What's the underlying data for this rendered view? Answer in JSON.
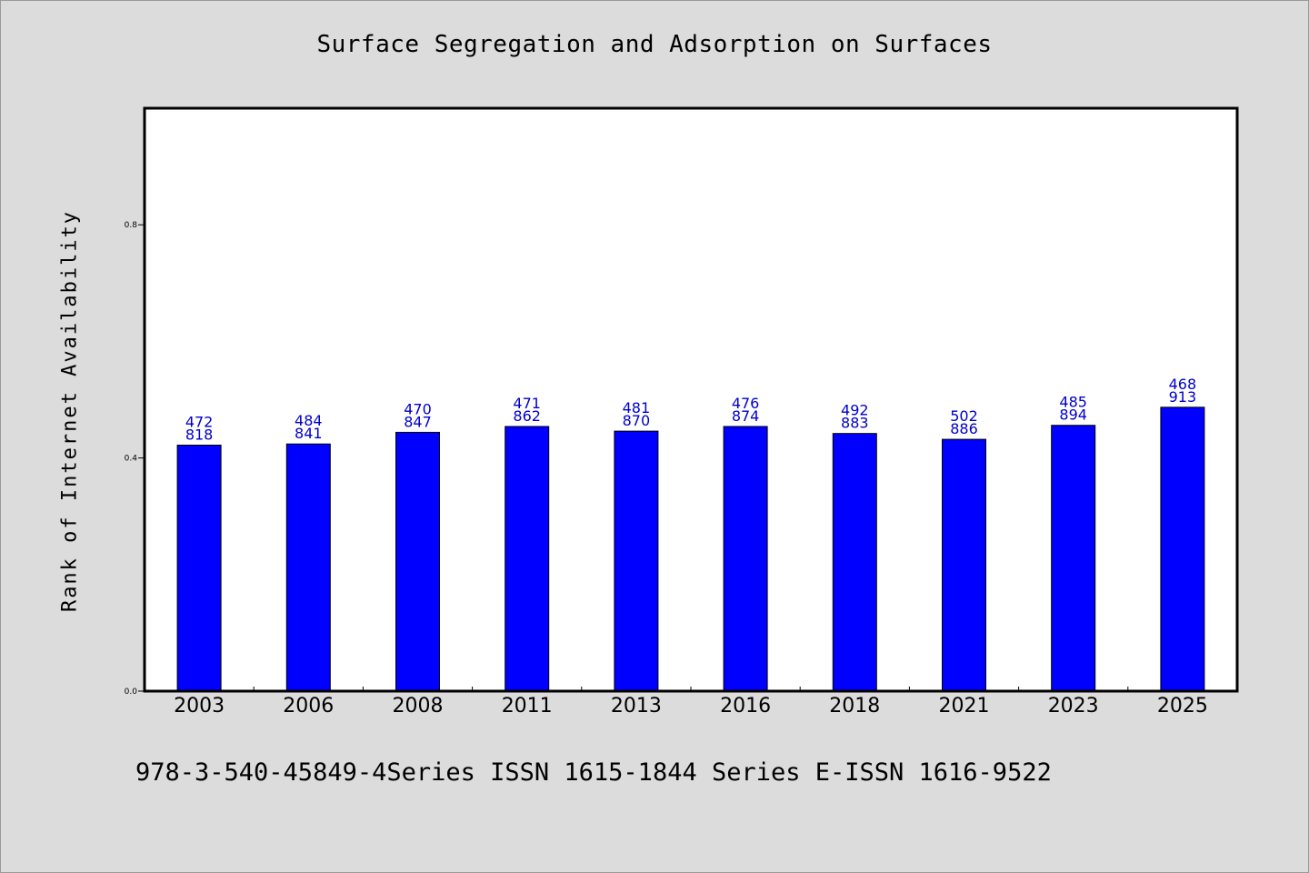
{
  "chart_data": {
    "type": "bar",
    "title": "Surface Segregation and Adsorption on Surfaces",
    "ylabel": "Rank of Internet Availability",
    "xlabel": "",
    "ylim": [
      0,
      1.0
    ],
    "yticks": [
      "0.0",
      "0.4",
      "0.8"
    ],
    "ytick_values": [
      0.0,
      0.4,
      0.8
    ],
    "categories": [
      "2003",
      "2006",
      "2008",
      "2011",
      "2013",
      "2016",
      "2018",
      "2021",
      "2023",
      "2025"
    ],
    "values": [
      0.422,
      0.424,
      0.444,
      0.454,
      0.446,
      0.454,
      0.442,
      0.432,
      0.456,
      0.487
    ],
    "labels": [
      [
        "472",
        "818"
      ],
      [
        "484",
        "841"
      ],
      [
        "470",
        "847"
      ],
      [
        "471",
        "862"
      ],
      [
        "481",
        "870"
      ],
      [
        "476",
        "874"
      ],
      [
        "492",
        "883"
      ],
      [
        "502",
        "886"
      ],
      [
        "485",
        "894"
      ],
      [
        "468",
        "913"
      ]
    ],
    "bar_color": "#0000ff",
    "label_color": "#0000cc",
    "grid": false
  },
  "footer": "978-3-540-45849-4Series ISSN 1615-1844 Series E-ISSN 1616-9522"
}
